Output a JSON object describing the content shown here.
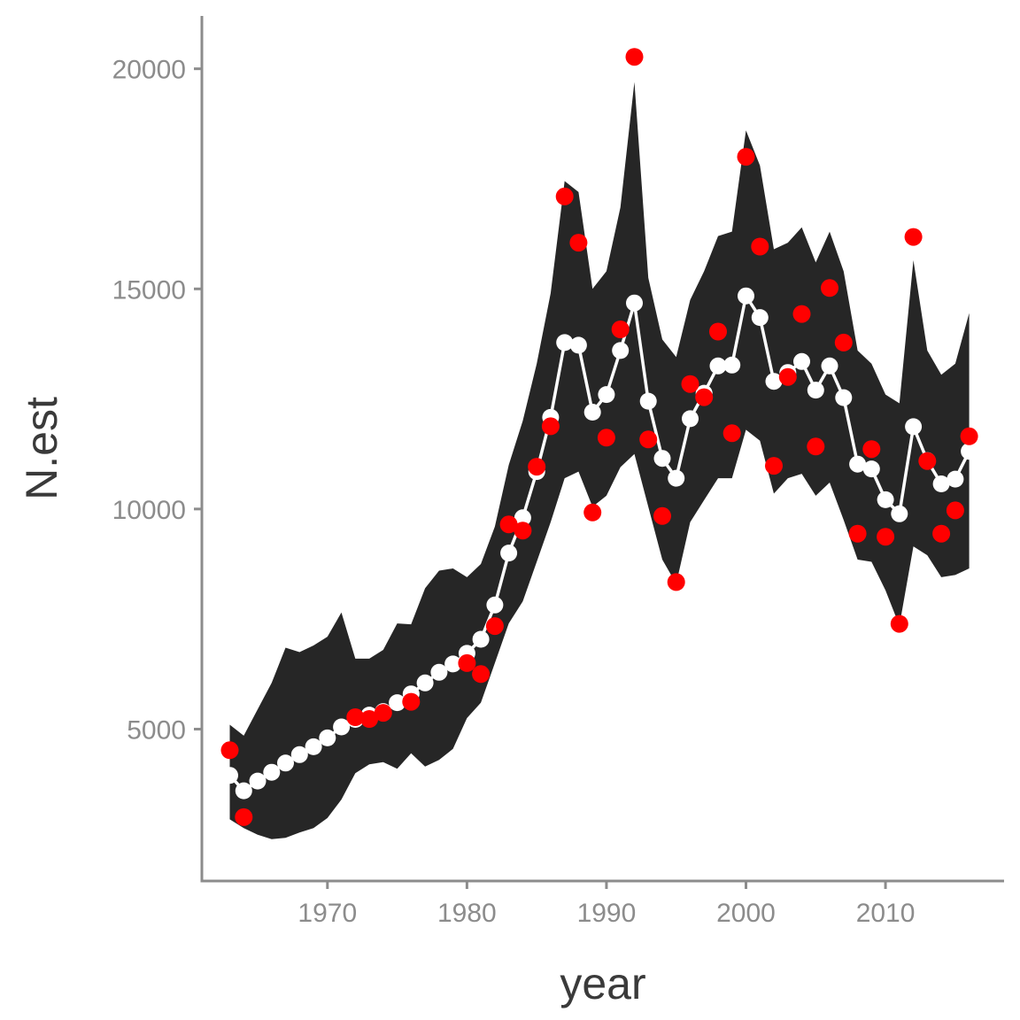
{
  "chart_data": {
    "type": "line",
    "xlabel": "year",
    "ylabel": "N.est",
    "xlim": [
      1961.0,
      2018.5
    ],
    "ylim": [
      1550,
      21200
    ],
    "x_ticks": [
      1970,
      1980,
      1990,
      2000,
      2010
    ],
    "y_ticks": [
      5000,
      10000,
      15000,
      20000
    ],
    "grid": false,
    "legend": "none",
    "colors": {
      "band": "#262626",
      "estimate": "#ffffff",
      "observed": "#ff0000",
      "axis": "#8c8c8c"
    },
    "years": [
      1963,
      1964,
      1965,
      1966,
      1967,
      1968,
      1969,
      1970,
      1971,
      1972,
      1973,
      1974,
      1975,
      1976,
      1977,
      1978,
      1979,
      1980,
      1981,
      1982,
      1983,
      1984,
      1985,
      1986,
      1987,
      1988,
      1989,
      1990,
      1991,
      1992,
      1993,
      1994,
      1995,
      1996,
      1997,
      1998,
      1999,
      2000,
      2001,
      2002,
      2003,
      2004,
      2005,
      2006,
      2007,
      2008,
      2009,
      2010,
      2011,
      2012,
      2013,
      2014,
      2015,
      2016
    ],
    "series": [
      {
        "kind": "band",
        "upper": [
          5100,
          4850,
          5450,
          6050,
          6850,
          6750,
          6900,
          7100,
          7650,
          6600,
          6600,
          6800,
          7400,
          7380,
          8200,
          8600,
          8650,
          8450,
          8750,
          9600,
          11000,
          12000,
          13300,
          14900,
          17450,
          17200,
          15000,
          15400,
          16850,
          19700,
          15250,
          13850,
          13450,
          14750,
          15400,
          16200,
          16300,
          18600,
          17800,
          15900,
          16050,
          16400,
          15600,
          16300,
          15400,
          13600,
          13300,
          12600,
          12400,
          15650,
          13600,
          13050,
          13300,
          14450
        ],
        "lower": [
          2950,
          2750,
          2600,
          2500,
          2530,
          2650,
          2750,
          2980,
          3400,
          4000,
          4200,
          4250,
          4100,
          4450,
          4150,
          4300,
          4550,
          5250,
          5600,
          6500,
          7400,
          7900,
          8800,
          9700,
          10700,
          10850,
          10050,
          10300,
          10950,
          11250,
          10050,
          8850,
          8300,
          9700,
          10200,
          10700,
          10700,
          11800,
          11550,
          10350,
          10700,
          10800,
          10300,
          10600,
          9750,
          8850,
          8800,
          8150,
          7350,
          9150,
          8950,
          8450,
          8500,
          8650
        ]
      },
      {
        "kind": "line-points",
        "values": [
          3950,
          3600,
          3820,
          4020,
          4230,
          4420,
          4600,
          4800,
          5050,
          5220,
          5320,
          5400,
          5600,
          5800,
          6050,
          6290,
          6480,
          6720,
          7040,
          7820,
          9000,
          9800,
          10850,
          12080,
          13780,
          13720,
          12200,
          12600,
          13600,
          14680,
          12450,
          11150,
          10700,
          12050,
          12630,
          13250,
          13270,
          14840,
          14350,
          12900,
          13100,
          13350,
          12700,
          13250,
          12530,
          11020,
          10910,
          10210,
          9890,
          11870,
          11100,
          10570,
          10680,
          11310
        ]
      },
      {
        "kind": "points",
        "values": [
          4520,
          3000,
          null,
          null,
          null,
          null,
          null,
          null,
          null,
          5270,
          5230,
          5370,
          null,
          5620,
          null,
          null,
          null,
          6500,
          6250,
          7340,
          9650,
          9510,
          10960,
          11880,
          17100,
          16050,
          9920,
          11620,
          14080,
          20270,
          11580,
          9840,
          8340,
          12840,
          12540,
          14030,
          11720,
          18000,
          15960,
          10980,
          13000,
          14430,
          11420,
          15020,
          13780,
          9440,
          11360,
          9370,
          7390,
          16180,
          11090,
          9440,
          9970,
          11650
        ]
      }
    ]
  }
}
